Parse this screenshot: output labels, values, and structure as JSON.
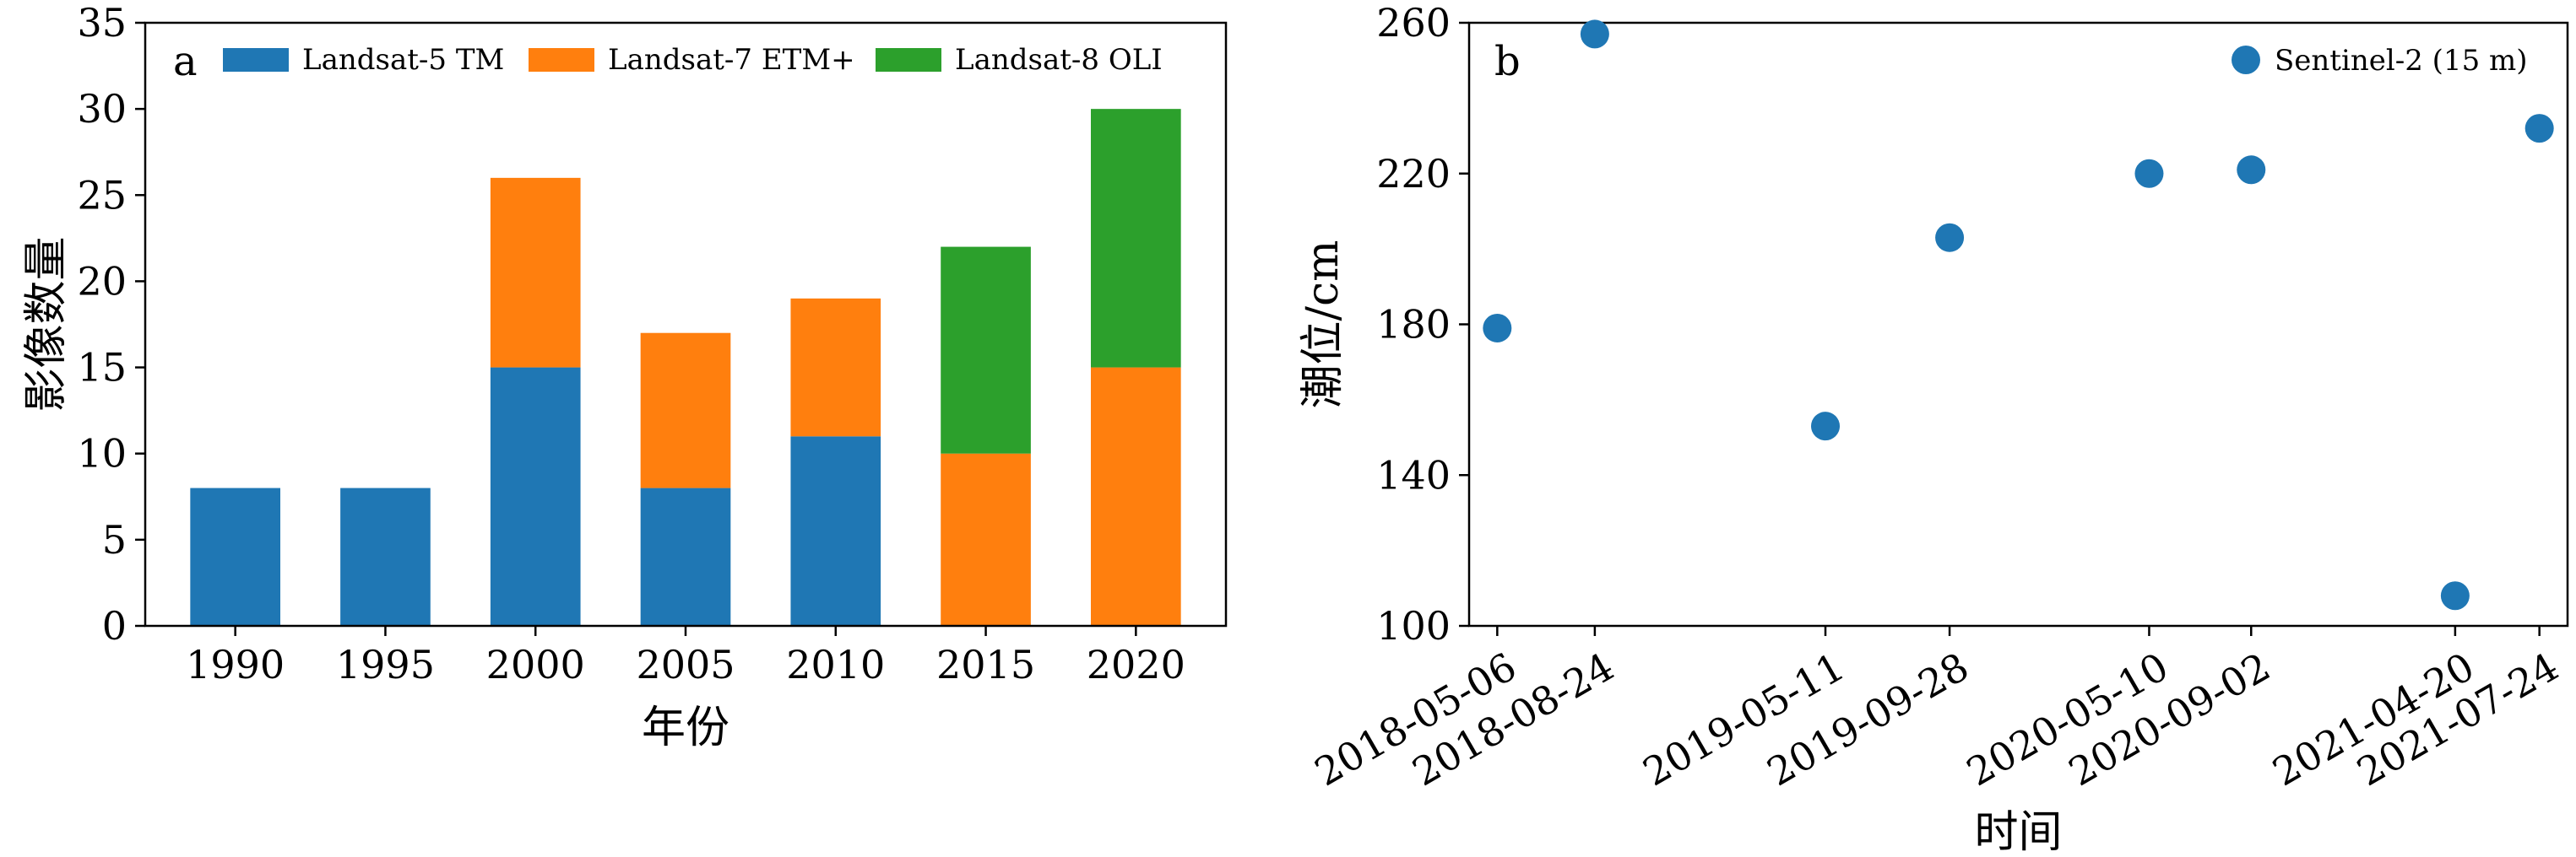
{
  "chart_data": [
    {
      "type": "bar",
      "stacked": true,
      "panel_label": "a",
      "xlabel": "年份",
      "ylabel": "影像数量",
      "ylim": [
        0,
        35
      ],
      "yticks": [
        0,
        5,
        10,
        15,
        20,
        25,
        30,
        35
      ],
      "categories": [
        "1990",
        "1995",
        "2000",
        "2005",
        "2010",
        "2015",
        "2020"
      ],
      "legend_position": "top",
      "series": [
        {
          "name": "Landsat-5 TM",
          "color": "#1f77b4",
          "values": [
            8,
            8,
            15,
            8,
            11,
            0,
            0
          ]
        },
        {
          "name": "Landsat-7 ETM+",
          "color": "#ff7f0e",
          "values": [
            0,
            0,
            11,
            9,
            8,
            10,
            15
          ]
        },
        {
          "name": "Landsat-8 OLI",
          "color": "#2ca02c",
          "values": [
            0,
            0,
            0,
            0,
            0,
            12,
            15
          ]
        }
      ]
    },
    {
      "type": "scatter",
      "panel_label": "b",
      "xlabel": "时间",
      "ylabel": "潮位/cm",
      "ylim": [
        100,
        260
      ],
      "yticks": [
        100,
        140,
        180,
        220,
        260
      ],
      "legend_position": "top-right",
      "series": [
        {
          "name": "Sentinel-2 (15 m)",
          "color": "#1f77b4",
          "x": [
            "2018-05-06",
            "2018-08-24",
            "2019-05-11",
            "2019-09-28",
            "2020-05-10",
            "2020-09-02",
            "2021-04-20",
            "2021-07-24"
          ],
          "y": [
            179,
            257,
            153,
            203,
            220,
            221,
            108,
            232
          ]
        }
      ]
    }
  ]
}
